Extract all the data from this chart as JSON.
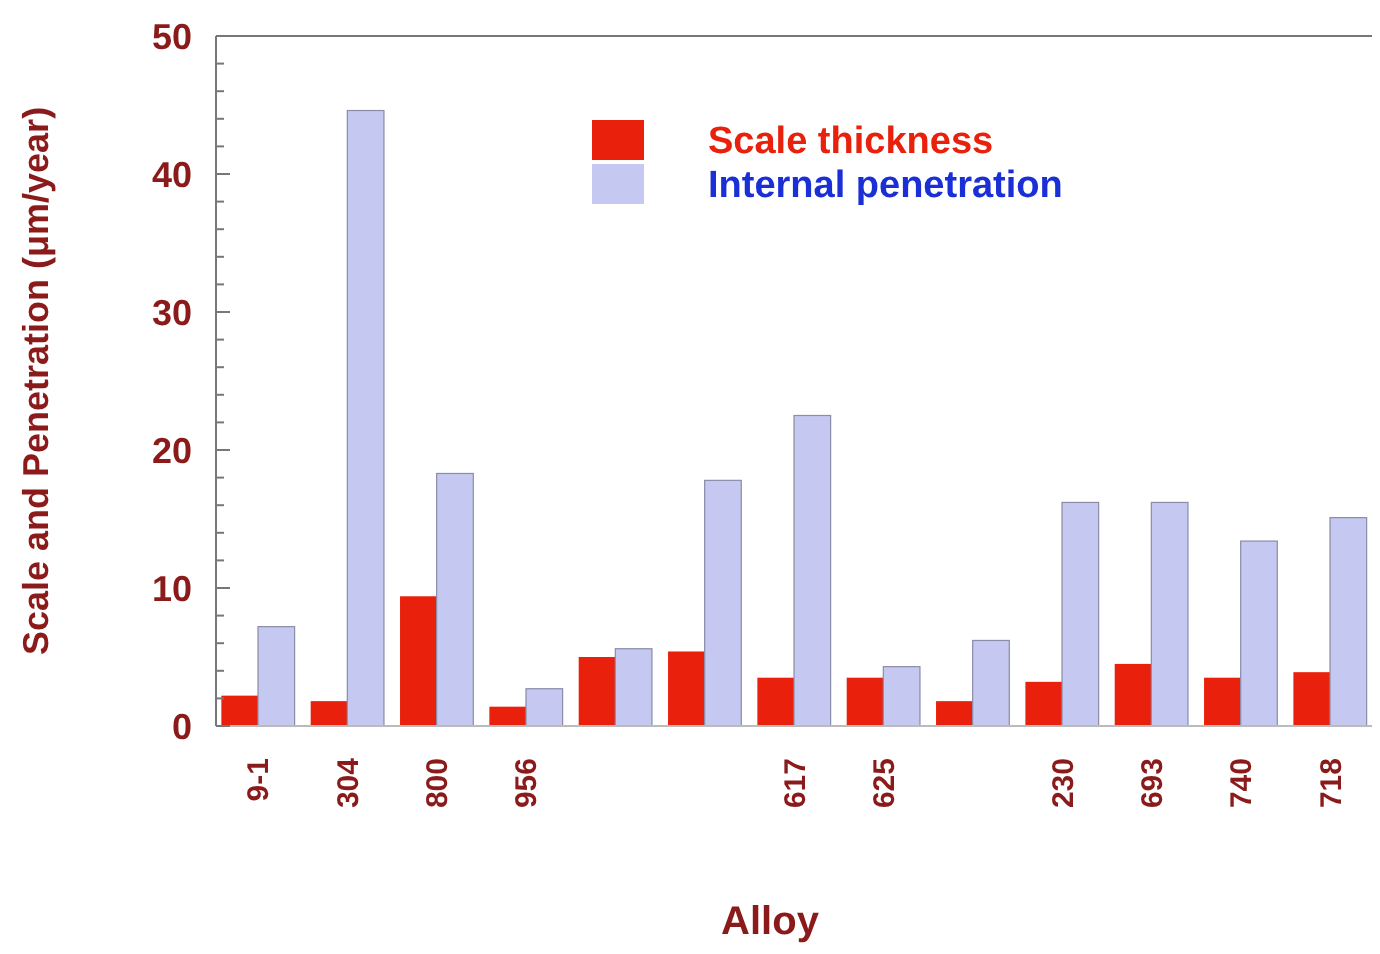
{
  "chart_data": {
    "type": "bar",
    "xlabel": "Alloy",
    "ylabel": "Scale and Penetration (μm/year)",
    "categories": [
      "9-1",
      "304",
      "800",
      "956",
      null,
      null,
      "617",
      "625",
      null,
      "230",
      "693",
      "740",
      "718"
    ],
    "series": [
      {
        "name": "Scale thickness",
        "color": "#e8200c",
        "values": [
          2.2,
          1.8,
          9.4,
          1.4,
          5.0,
          5.4,
          3.5,
          3.5,
          1.8,
          3.2,
          4.5,
          3.5,
          3.9
        ]
      },
      {
        "name": "Internal penetration",
        "color": "#c5c8f0",
        "values": [
          7.2,
          44.6,
          18.3,
          2.7,
          5.6,
          17.8,
          22.5,
          4.3,
          6.2,
          16.2,
          16.2,
          13.4,
          15.1
        ]
      }
    ],
    "ylim": [
      0,
      50
    ],
    "yticks": [
      0,
      {
        "value": 2,
        "label": null
      },
      {
        "value": 4,
        "label": null
      },
      {
        "value": 6,
        "label": null
      },
      {
        "value": 8,
        "label": null
      },
      10,
      {
        "value": 12,
        "label": null
      },
      {
        "value": 14,
        "label": null
      },
      {
        "value": 16,
        "label": null
      },
      {
        "value": 18,
        "label": null
      },
      20,
      {
        "value": 22,
        "label": null
      },
      {
        "value": 24,
        "label": null
      },
      {
        "value": 26,
        "label": null
      },
      {
        "value": 28,
        "label": null
      },
      30,
      {
        "value": 32,
        "label": null
      },
      {
        "value": 34,
        "label": null
      },
      {
        "value": 36,
        "label": null
      },
      {
        "value": 38,
        "label": null
      },
      40,
      {
        "value": 42,
        "label": null
      },
      {
        "value": 44,
        "label": null
      },
      {
        "value": 46,
        "label": null
      },
      {
        "value": 48,
        "label": null
      },
      50
    ],
    "legend": "top right",
    "grid": false
  }
}
